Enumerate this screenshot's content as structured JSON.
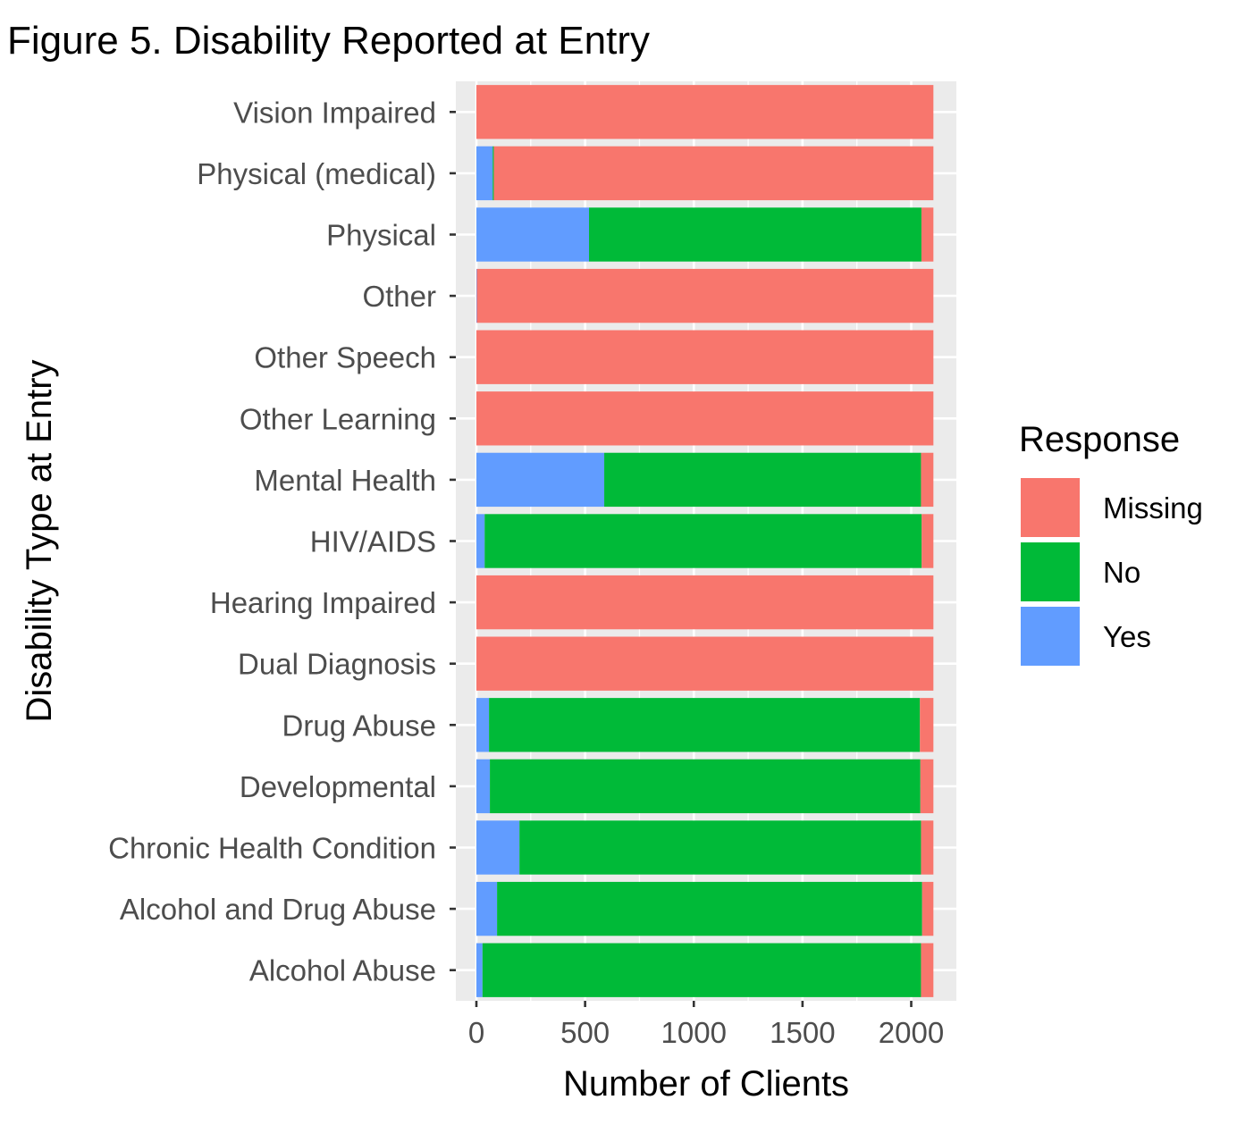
{
  "chart_data": {
    "type": "bar",
    "orientation": "horizontal",
    "stacked": true,
    "title": "Figure 5. Disability Reported at Entry",
    "xlabel": "Number of Clients",
    "ylabel": "Disability Type at Entry",
    "xlim": [
      -100,
      2200
    ],
    "xticks": [
      0,
      500,
      1000,
      1500,
      2000
    ],
    "grid": true,
    "legend": {
      "title": "Response",
      "position": "right"
    },
    "categories": [
      "Alcohol Abuse",
      "Alcohol and Drug Abuse",
      "Chronic Health Condition",
      "Developmental",
      "Drug Abuse",
      "Dual Diagnosis",
      "Hearing Impaired",
      "HIV/AIDS",
      "Mental Health",
      "Other Learning",
      "Other Speech",
      "Other",
      "Physical",
      "Physical (medical)",
      "Vision Impaired"
    ],
    "series": [
      {
        "name": "Yes",
        "color": "#619CFF",
        "values": [
          28,
          95,
          198,
          62,
          58,
          0,
          0,
          38,
          588,
          0,
          0,
          2,
          518,
          75,
          0
        ]
      },
      {
        "name": "No",
        "color": "#00BA38",
        "values": [
          2017,
          1955,
          1847,
          1980,
          1982,
          0,
          0,
          2010,
          1457,
          0,
          0,
          0,
          1529,
          5,
          0
        ]
      },
      {
        "name": "Missing",
        "color": "#F8766D",
        "values": [
          57,
          52,
          57,
          60,
          62,
          2102,
          2102,
          54,
          57,
          2102,
          2102,
          2100,
          55,
          2022,
          2102
        ]
      }
    ],
    "legend_order": [
      "Missing",
      "No",
      "Yes"
    ]
  }
}
